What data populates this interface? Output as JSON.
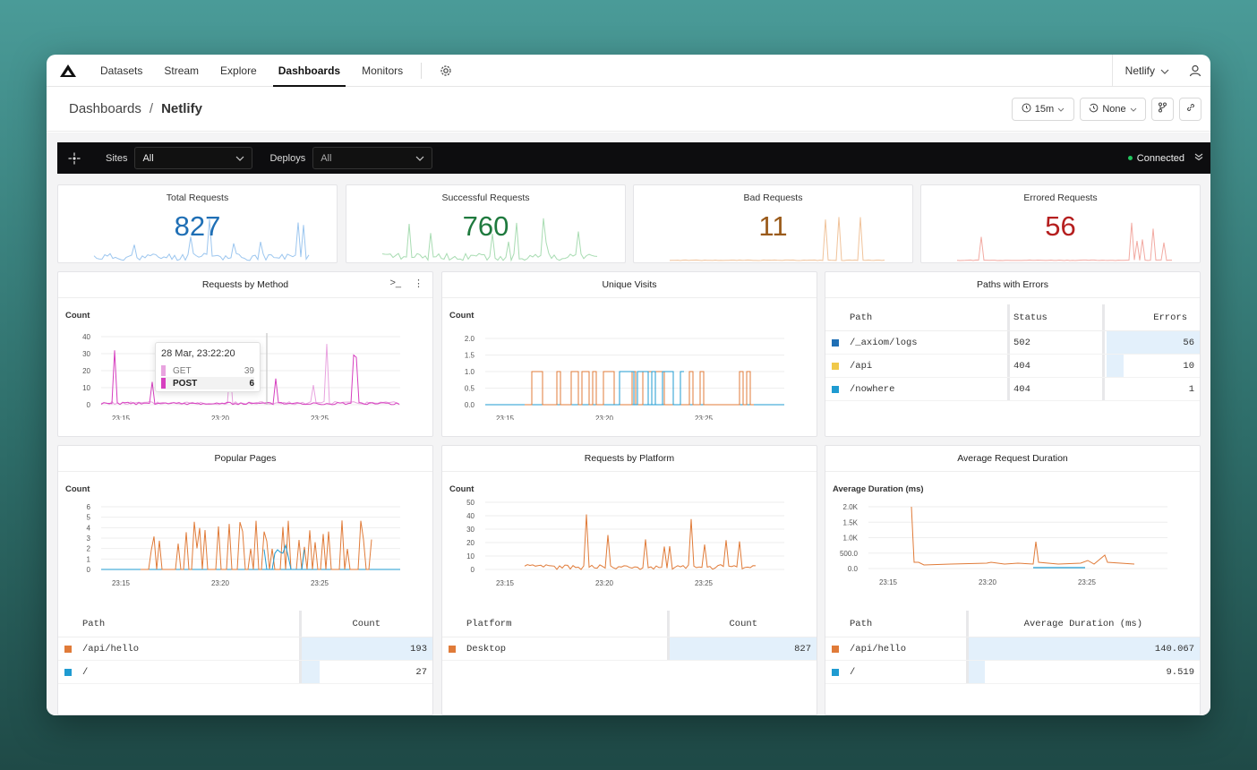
{
  "nav": {
    "items": [
      "Datasets",
      "Stream",
      "Explore",
      "Dashboards",
      "Monitors"
    ],
    "active": "Dashboards",
    "org": "Netlify"
  },
  "breadcrumb": {
    "root": "Dashboards",
    "sep": "/",
    "current": "Netlify"
  },
  "toolbar": {
    "time_range": "15m",
    "compare": "None"
  },
  "filters": {
    "sites_label": "Sites",
    "sites_value": "All",
    "deploys_label": "Deploys",
    "deploys_value": "All",
    "status": "Connected",
    "status_color": "#22c55e"
  },
  "stats": [
    {
      "title": "Total Requests",
      "value": "827",
      "color": "#1f6fb5",
      "spark": "#9cc6ef"
    },
    {
      "title": "Successful Requests",
      "value": "760",
      "color": "#1f7a3e",
      "spark": "#a8dcb2"
    },
    {
      "title": "Bad Requests",
      "value": "11",
      "color": "#9a5a1a",
      "spark": "#f0c39b"
    },
    {
      "title": "Errored Requests",
      "value": "56",
      "color": "#b51f1f",
      "spark": "#f2aaa2"
    }
  ],
  "panels": {
    "method": {
      "title": "Requests by Method",
      "ylabel": "Count",
      "yticks": [
        "40",
        "30",
        "20",
        "10",
        "0"
      ],
      "xticks": [
        "23:15",
        "23:20",
        "23:25"
      ],
      "tooltip": {
        "time": "28 Mar, 23:22:20",
        "rows": [
          {
            "label": "GET",
            "value": "39",
            "color": "#e8a3df"
          },
          {
            "label": "POST",
            "value": "6",
            "color": "#d63fbf"
          }
        ]
      }
    },
    "visits": {
      "title": "Unique Visits",
      "ylabel": "Count",
      "yticks": [
        "2.0",
        "1.5",
        "1.0",
        "0.5",
        "0.0"
      ],
      "xticks": [
        "23:15",
        "23:20",
        "23:25"
      ]
    },
    "errors": {
      "title": "Paths with Errors",
      "headers": [
        "Path",
        "Status",
        "Errors"
      ],
      "rows": [
        {
          "path": "/_axiom/logs",
          "status": "502",
          "errors": "56",
          "color": "#1f6fb5",
          "share": 1.0
        },
        {
          "path": "/api",
          "status": "404",
          "errors": "10",
          "color": "#f0c94a",
          "share": 0.18
        },
        {
          "path": "/nowhere",
          "status": "404",
          "errors": "1",
          "color": "#1f9bd1",
          "share": 0.02
        }
      ]
    },
    "pages": {
      "title": "Popular Pages",
      "ylabel": "Count",
      "yticks": [
        "6",
        "5",
        "4",
        "3",
        "2",
        "1",
        "0"
      ],
      "xticks": [
        "23:15",
        "23:20",
        "23:25"
      ],
      "headers": [
        "Path",
        "Count"
      ],
      "rows": [
        {
          "path": "/api/hello",
          "count": "193",
          "color": "#e07b39",
          "share": 1.0
        },
        {
          "path": "/",
          "count": "27",
          "color": "#1f9bd1",
          "share": 0.14
        }
      ]
    },
    "platform": {
      "title": "Requests by Platform",
      "ylabel": "Count",
      "yticks": [
        "50",
        "40",
        "30",
        "20",
        "10",
        "0"
      ],
      "xticks": [
        "23:15",
        "23:20",
        "23:25"
      ],
      "headers": [
        "Platform",
        "Count"
      ],
      "rows": [
        {
          "path": "Desktop",
          "count": "827",
          "color": "#e07b39",
          "share": 1.0
        }
      ]
    },
    "duration": {
      "title": "Average Request Duration",
      "ylabel": "Average Duration (ms)",
      "yticks": [
        "2.0K",
        "1.5K",
        "1.0K",
        "500.0",
        "0.0"
      ],
      "xticks": [
        "23:15",
        "23:20",
        "23:25"
      ],
      "headers": [
        "Path",
        "Average Duration (ms)"
      ],
      "rows": [
        {
          "path": "/api/hello",
          "count": "140.067",
          "color": "#e07b39",
          "share": 1.0
        },
        {
          "path": "/",
          "count": "9.519",
          "color": "#1f9bd1",
          "share": 0.07
        }
      ]
    }
  }
}
